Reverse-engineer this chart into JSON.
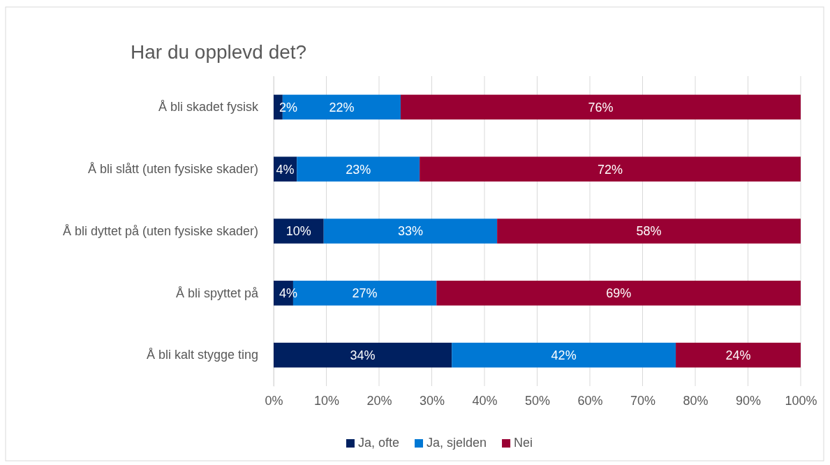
{
  "chart_data": {
    "type": "bar",
    "orientation": "horizontal",
    "stacked": true,
    "title": "Har du opplevd det?",
    "categories": [
      "Å bli skadet fysisk",
      "Å bli slått (uten fysiske skader)",
      "Å bli dyttet på (uten fysiske skader)",
      "Å bli spyttet på",
      "Å bli kalt stygge ting"
    ],
    "series": [
      {
        "name": "Ja, ofte",
        "color": "#002060",
        "values": [
          1.7,
          4.4,
          9.5,
          3.7,
          33.8
        ],
        "value_labels": [
          "2%",
          "4%",
          "10%",
          "4%",
          "34%"
        ]
      },
      {
        "name": "Ja, sjelden",
        "color": "#0078d4",
        "values": [
          22.4,
          23.3,
          32.9,
          27.2,
          42.5
        ],
        "value_labels": [
          "22%",
          "23%",
          "33%",
          "27%",
          "42%"
        ]
      },
      {
        "name": "Nei",
        "color": "#990033",
        "values": [
          75.9,
          72.3,
          57.6,
          69.1,
          23.7
        ],
        "value_labels": [
          "76%",
          "72%",
          "58%",
          "69%",
          "24%"
        ]
      }
    ],
    "xlim": [
      0,
      100
    ],
    "xticks": [
      {
        "value": 0,
        "label": "0%"
      },
      {
        "value": 10,
        "label": "10%"
      },
      {
        "value": 20,
        "label": "20%"
      },
      {
        "value": 30,
        "label": "30%"
      },
      {
        "value": 40,
        "label": "40%"
      },
      {
        "value": 50,
        "label": "50%"
      },
      {
        "value": 60,
        "label": "60%"
      },
      {
        "value": 70,
        "label": "70%"
      },
      {
        "value": 80,
        "label": "80%"
      },
      {
        "value": 90,
        "label": "90%"
      },
      {
        "value": 100,
        "label": "100%"
      }
    ],
    "grid": "x",
    "legend": "bottom"
  }
}
